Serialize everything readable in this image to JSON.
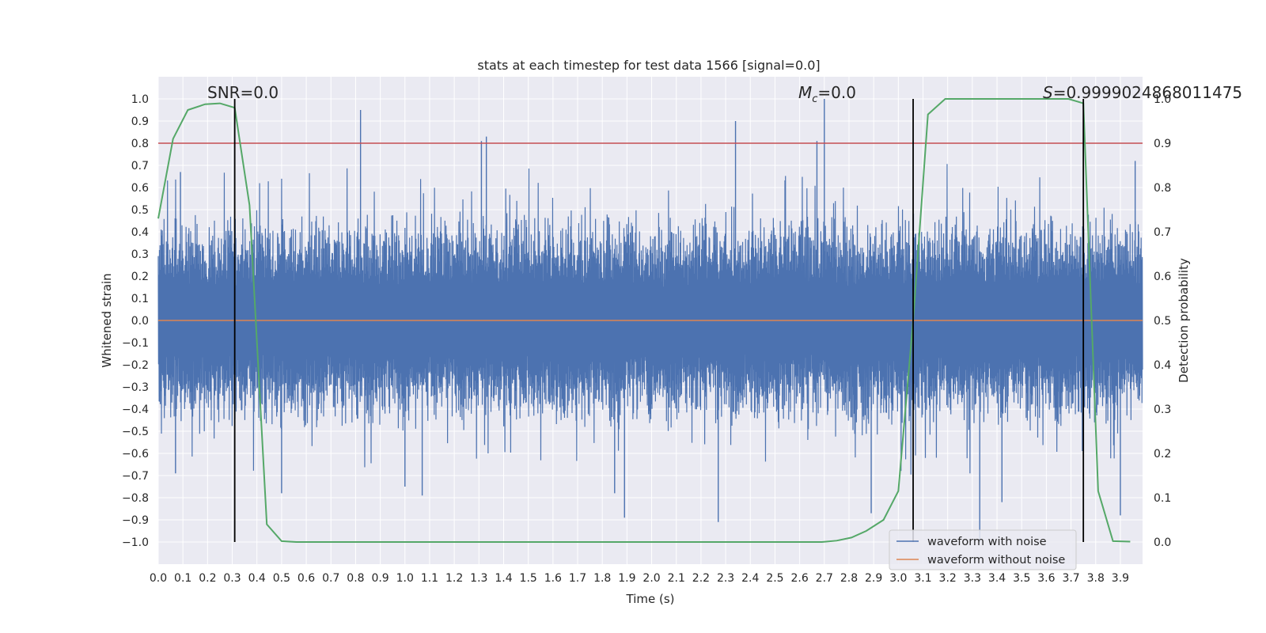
{
  "chart_data": {
    "type": "line",
    "title": "stats at each timestep for test data 1566 [signal=0.0]",
    "xlabel": "Time (s)",
    "ylabel": "Whitened strain",
    "ylabel_right": "Detection probability",
    "xlim": [
      0.0,
      3.99
    ],
    "ylim": [
      -1.1,
      1.1
    ],
    "ylim_right": [
      -0.05,
      1.05
    ],
    "x_ticks": [
      "0.0",
      "0.1",
      "0.2",
      "0.3",
      "0.4",
      "0.5",
      "0.6",
      "0.7",
      "0.8",
      "0.9",
      "1.0",
      "1.1",
      "1.2",
      "1.3",
      "1.4",
      "1.5",
      "1.6",
      "1.7",
      "1.8",
      "1.9",
      "2.0",
      "2.1",
      "2.2",
      "2.3",
      "2.4",
      "2.5",
      "2.6",
      "2.7",
      "2.8",
      "2.9",
      "3.0",
      "3.1",
      "3.2",
      "3.3",
      "3.4",
      "3.5",
      "3.6",
      "3.7",
      "3.8",
      "3.9"
    ],
    "y_ticks": [
      "1.0",
      "0.9",
      "0.8",
      "0.7",
      "0.6",
      "0.5",
      "0.4",
      "0.3",
      "0.2",
      "0.1",
      "0.0",
      "−0.1",
      "−0.2",
      "−0.3",
      "−0.4",
      "−0.5",
      "−0.6",
      "−0.7",
      "−0.8",
      "−0.9",
      "−1.0"
    ],
    "y_right_ticks": [
      "1.0",
      "0.9",
      "0.8",
      "0.7",
      "0.6",
      "0.5",
      "0.4",
      "0.3",
      "0.2",
      "0.1",
      "0.0"
    ],
    "grid": true,
    "legend_position": "lower-right",
    "annotations": {
      "snr": "SNR=0.0",
      "mc_symbol": "M",
      "mc_subscript": "c",
      "mc_value": "=0.0",
      "s_symbol": "S",
      "s_value": "=0.9999024868011475"
    },
    "threshold_line": {
      "y_right": 0.9,
      "color": "#c44e52"
    },
    "vertical_markers_x": [
      0.31,
      3.06,
      3.75
    ],
    "series": [
      {
        "name": "waveform with noise",
        "color": "#4c72b0",
        "description_of_values": "noise samples spanning roughly -1.0 to 1.0",
        "spikes": [
          [
            0.09,
            0.67
          ],
          [
            0.82,
            0.95
          ],
          [
            1.31,
            0.81
          ],
          [
            1.33,
            0.83
          ],
          [
            2.34,
            0.9
          ],
          [
            2.67,
            0.81
          ],
          [
            2.7,
            1.0
          ],
          [
            3.75,
            0.81
          ],
          [
            3.96,
            0.72
          ],
          [
            0.07,
            -0.69
          ],
          [
            0.5,
            -0.78
          ],
          [
            1.0,
            -0.75
          ],
          [
            1.07,
            -0.79
          ],
          [
            1.85,
            -0.78
          ],
          [
            1.89,
            -0.89
          ],
          [
            2.27,
            -0.91
          ],
          [
            2.89,
            -0.87
          ],
          [
            3.33,
            -1.0
          ],
          [
            3.42,
            -0.82
          ],
          [
            3.9,
            -0.88
          ]
        ]
      },
      {
        "name": "waveform without noise",
        "color": "#dd8452",
        "x": [
          0.0,
          3.99
        ],
        "y": [
          0.0,
          0.0
        ]
      },
      {
        "name": "",
        "color": "#55a868",
        "axis": "right",
        "x": [
          0.0,
          0.06,
          0.12,
          0.19,
          0.25,
          0.31,
          0.37,
          0.44,
          0.5,
          0.56,
          0.62,
          0.69,
          1.0,
          1.5,
          2.0,
          2.5,
          2.69,
          2.75,
          2.81,
          2.87,
          2.94,
          3.0,
          3.06,
          3.12,
          3.19,
          3.25,
          3.5,
          3.69,
          3.75,
          3.81,
          3.87,
          3.94
        ],
        "y": [
          0.73,
          0.91,
          0.975,
          0.988,
          0.99,
          0.98,
          0.76,
          0.04,
          0.002,
          0.0,
          0.0,
          0.0,
          0.0,
          0.0,
          0.0,
          0.0,
          0.0,
          0.003,
          0.01,
          0.025,
          0.05,
          0.115,
          0.5,
          0.965,
          1.0,
          1.0,
          1.0,
          1.0,
          0.99,
          0.115,
          0.002,
          0.001
        ]
      }
    ]
  }
}
